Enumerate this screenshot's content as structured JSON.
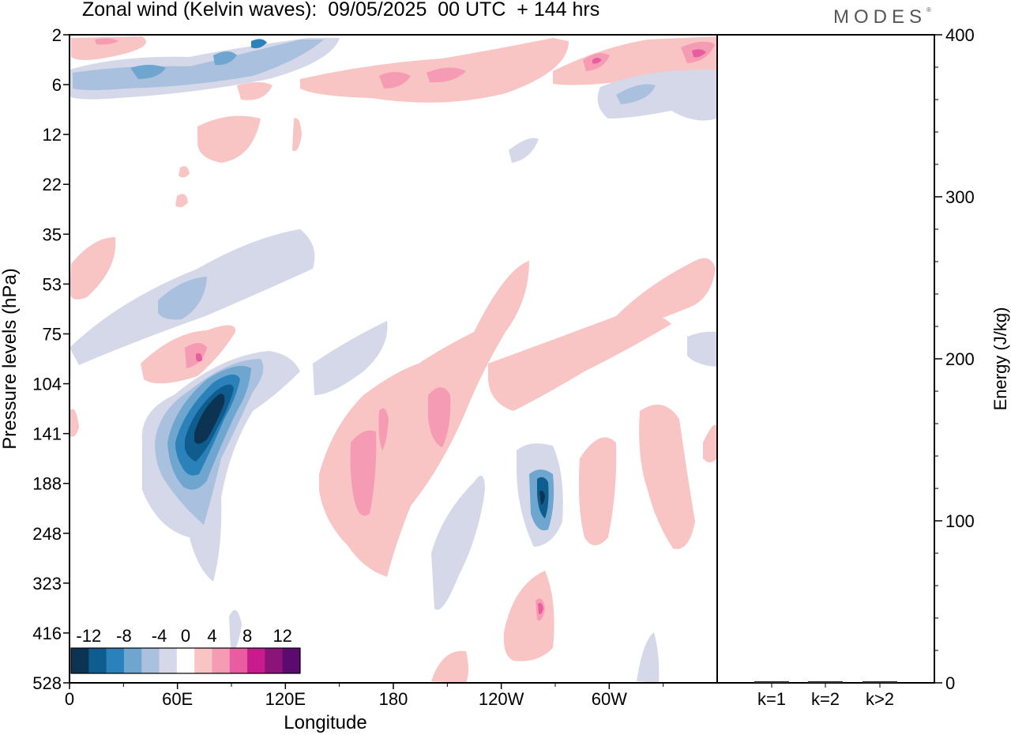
{
  "title": "Zonal wind (Kelvin waves):  09/05/2025  00 UTC  + 144 hrs",
  "brand": "MODES",
  "brand_mark": "®",
  "chart_data": [
    {
      "type": "heatmap",
      "title": "Zonal wind (Kelvin waves):  09/05/2025  00 UTC  + 144 hrs",
      "xlabel": "Longitude",
      "ylabel": "Pressure levels (hPa)",
      "x_ticks": [
        "0",
        "60E",
        "120E",
        "180",
        "120W",
        "60W"
      ],
      "x_tick_values": [
        0,
        60,
        120,
        180,
        240,
        300
      ],
      "xlim": [
        0,
        360
      ],
      "y_ticks": [
        "2",
        "6",
        "12",
        "22",
        "35",
        "53",
        "75",
        "104",
        "141",
        "188",
        "248",
        "323",
        "416",
        "528"
      ],
      "y_scale": "pressure levels, equally spaced, top = 2 hPa",
      "colorbar": {
        "labels": [
          "-12",
          "-8",
          "-4",
          "0",
          "4",
          "8",
          "12"
        ],
        "levels": [
          -14,
          -12,
          -10,
          -8,
          -6,
          -4,
          -2,
          2,
          4,
          6,
          8,
          10,
          12,
          14
        ],
        "colors": [
          "#0d3352",
          "#0f5d8e",
          "#2b82ba",
          "#6ea6cf",
          "#a9c0de",
          "#d5d8e8",
          "#ffffff",
          "#f8c4c4",
          "#f69bb4",
          "#ea5ca2",
          "#c81b8d",
          "#8b1479",
          "#5b0a6e"
        ]
      },
      "features": [
        {
          "sign": "neg",
          "lon": 72,
          "level": 141,
          "peak": -14,
          "desc": "strong easterly core"
        },
        {
          "sign": "pos",
          "lon": 68,
          "level": 75,
          "peak": 8
        },
        {
          "sign": "neg",
          "lon": 260,
          "level": 188,
          "peak": -10
        },
        {
          "sign": "pos",
          "lon": 163,
          "level": 188,
          "peak": 6
        },
        {
          "sign": "pos",
          "lon": 200,
          "level": 141,
          "peak": 6
        },
        {
          "sign": "pos",
          "lon": 260,
          "level": 416,
          "peak": 6
        },
        {
          "sign": "neg",
          "lon": 40,
          "level": 6,
          "peak": -8
        },
        {
          "sign": "pos",
          "lon": 300,
          "level": 4,
          "peak": 8
        },
        {
          "sign": "pos",
          "lon": 345,
          "level": 4,
          "peak": 8
        }
      ]
    },
    {
      "type": "bar",
      "ylabel": "Energy (J/kg)",
      "categories": [
        "k=1",
        "k=2",
        "k>2"
      ],
      "values": [
        1,
        1,
        1
      ],
      "ylim": [
        0,
        400
      ],
      "y_ticks": [
        0,
        100,
        200,
        300,
        400
      ]
    }
  ]
}
